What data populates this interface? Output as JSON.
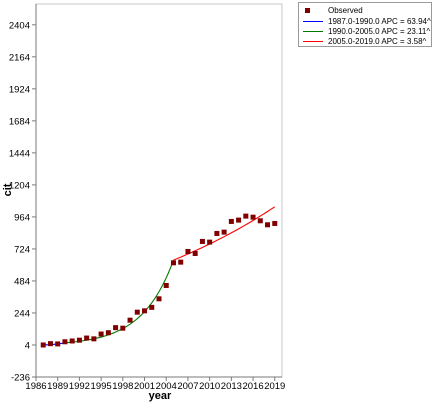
{
  "chart_data": {
    "type": "scatter",
    "title": "",
    "xlabel": "year",
    "ylabel": "cit",
    "xlim": [
      1986,
      2020
    ],
    "ylim": [
      -236,
      2560
    ],
    "xticks": [
      1986,
      1989,
      1992,
      1995,
      1998,
      2001,
      2004,
      2007,
      2010,
      2013,
      2016,
      2019
    ],
    "yticks": [
      -236,
      4,
      244,
      484,
      724,
      964,
      1204,
      1444,
      1684,
      1924,
      2164,
      2404
    ],
    "grid": false,
    "legend_position": "top-right",
    "observed": {
      "name": "Observed",
      "color": "#800000",
      "x": [
        1987,
        1988,
        1989,
        1990,
        1991,
        1992,
        1993,
        1994,
        1995,
        1996,
        1997,
        1998,
        1999,
        2000,
        2001,
        2002,
        2003,
        2004,
        2005,
        2006,
        2007,
        2008,
        2009,
        2010,
        2011,
        2012,
        2013,
        2014,
        2015,
        2016,
        2017,
        2018,
        2019
      ],
      "y": [
        4,
        14,
        12,
        28,
        34,
        40,
        56,
        50,
        86,
        96,
        134,
        130,
        190,
        250,
        260,
        286,
        350,
        450,
        620,
        625,
        705,
        690,
        780,
        775,
        840,
        850,
        930,
        940,
        970,
        962,
        935,
        905,
        915
      ]
    },
    "series": [
      {
        "name": "1987.0-1990.0 APC  = 63.94^",
        "color": "#0000ff",
        "x": [
          1987,
          1990
        ],
        "start": 4,
        "apc": 63.94
      },
      {
        "name": "1990.0-2005.0 APC  = 23.11^",
        "color": "#007a00",
        "x": [
          1990,
          2005
        ],
        "start": 20,
        "apc": 23.11
      },
      {
        "name": "2005.0-2019.0 APC  = 3.58^",
        "color": "#ff0000",
        "x": [
          2005,
          2019
        ],
        "start": 640,
        "apc": 3.58
      }
    ],
    "fit_end_value": 1040
  }
}
